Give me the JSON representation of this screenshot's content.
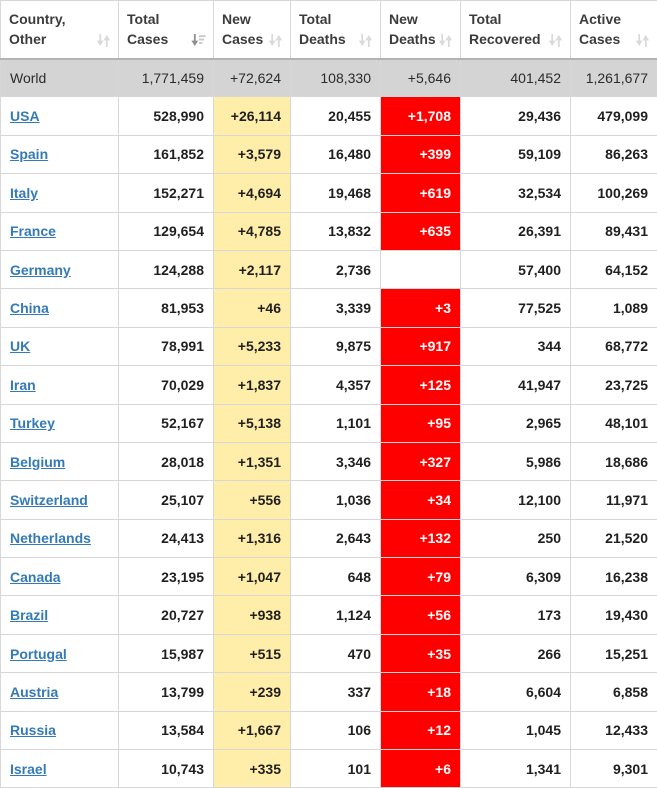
{
  "table": {
    "columns": [
      {
        "id": "country",
        "line1": "Country,",
        "line2": "Other",
        "sort": "unsorted",
        "sort_icon": "sort-both-icon"
      },
      {
        "id": "total_cases",
        "line1": "Total",
        "line2": "Cases",
        "sort": "desc",
        "sort_icon": "sort-descending-icon"
      },
      {
        "id": "new_cases",
        "line1": "New",
        "line2": "Cases",
        "sort": "unsorted",
        "sort_icon": "sort-both-icon"
      },
      {
        "id": "total_deaths",
        "line1": "Total",
        "line2": "Deaths",
        "sort": "unsorted",
        "sort_icon": "sort-both-icon"
      },
      {
        "id": "new_deaths",
        "line1": "New",
        "line2": "Deaths",
        "sort": "unsorted",
        "sort_icon": "sort-both-icon"
      },
      {
        "id": "total_recovered",
        "line1": "Total",
        "line2": "Recovered",
        "sort": "unsorted",
        "sort_icon": "sort-both-icon"
      },
      {
        "id": "active_cases",
        "line1": "Active",
        "line2": "Cases",
        "sort": "unsorted",
        "sort_icon": "sort-both-icon"
      }
    ],
    "world_row": {
      "country": "World",
      "total_cases": "1,771,459",
      "new_cases": "+72,624",
      "total_deaths": "108,330",
      "new_deaths": "+5,646",
      "total_recovered": "401,452",
      "active_cases": "1,261,677"
    },
    "rows": [
      {
        "country": "USA",
        "total_cases": "528,990",
        "new_cases": "+26,114",
        "total_deaths": "20,455",
        "new_deaths": "+1,708",
        "total_recovered": "29,436",
        "active_cases": "479,099"
      },
      {
        "country": "Spain",
        "total_cases": "161,852",
        "new_cases": "+3,579",
        "total_deaths": "16,480",
        "new_deaths": "+399",
        "total_recovered": "59,109",
        "active_cases": "86,263"
      },
      {
        "country": "Italy",
        "total_cases": "152,271",
        "new_cases": "+4,694",
        "total_deaths": "19,468",
        "new_deaths": "+619",
        "total_recovered": "32,534",
        "active_cases": "100,269"
      },
      {
        "country": "France",
        "total_cases": "129,654",
        "new_cases": "+4,785",
        "total_deaths": "13,832",
        "new_deaths": "+635",
        "total_recovered": "26,391",
        "active_cases": "89,431"
      },
      {
        "country": "Germany",
        "total_cases": "124,288",
        "new_cases": "+2,117",
        "total_deaths": "2,736",
        "new_deaths": "",
        "total_recovered": "57,400",
        "active_cases": "64,152"
      },
      {
        "country": "China",
        "total_cases": "81,953",
        "new_cases": "+46",
        "total_deaths": "3,339",
        "new_deaths": "+3",
        "total_recovered": "77,525",
        "active_cases": "1,089"
      },
      {
        "country": "UK",
        "total_cases": "78,991",
        "new_cases": "+5,233",
        "total_deaths": "9,875",
        "new_deaths": "+917",
        "total_recovered": "344",
        "active_cases": "68,772"
      },
      {
        "country": "Iran",
        "total_cases": "70,029",
        "new_cases": "+1,837",
        "total_deaths": "4,357",
        "new_deaths": "+125",
        "total_recovered": "41,947",
        "active_cases": "23,725"
      },
      {
        "country": "Turkey",
        "total_cases": "52,167",
        "new_cases": "+5,138",
        "total_deaths": "1,101",
        "new_deaths": "+95",
        "total_recovered": "2,965",
        "active_cases": "48,101"
      },
      {
        "country": "Belgium",
        "total_cases": "28,018",
        "new_cases": "+1,351",
        "total_deaths": "3,346",
        "new_deaths": "+327",
        "total_recovered": "5,986",
        "active_cases": "18,686"
      },
      {
        "country": "Switzerland",
        "total_cases": "25,107",
        "new_cases": "+556",
        "total_deaths": "1,036",
        "new_deaths": "+34",
        "total_recovered": "12,100",
        "active_cases": "11,971"
      },
      {
        "country": "Netherlands",
        "total_cases": "24,413",
        "new_cases": "+1,316",
        "total_deaths": "2,643",
        "new_deaths": "+132",
        "total_recovered": "250",
        "active_cases": "21,520"
      },
      {
        "country": "Canada",
        "total_cases": "23,195",
        "new_cases": "+1,047",
        "total_deaths": "648",
        "new_deaths": "+79",
        "total_recovered": "6,309",
        "active_cases": "16,238"
      },
      {
        "country": "Brazil",
        "total_cases": "20,727",
        "new_cases": "+938",
        "total_deaths": "1,124",
        "new_deaths": "+56",
        "total_recovered": "173",
        "active_cases": "19,430"
      },
      {
        "country": "Portugal",
        "total_cases": "15,987",
        "new_cases": "+515",
        "total_deaths": "470",
        "new_deaths": "+35",
        "total_recovered": "266",
        "active_cases": "15,251"
      },
      {
        "country": "Austria",
        "total_cases": "13,799",
        "new_cases": "+239",
        "total_deaths": "337",
        "new_deaths": "+18",
        "total_recovered": "6,604",
        "active_cases": "6,858"
      },
      {
        "country": "Russia",
        "total_cases": "13,584",
        "new_cases": "+1,667",
        "total_deaths": "106",
        "new_deaths": "+12",
        "total_recovered": "1,045",
        "active_cases": "12,433"
      },
      {
        "country": "Israel",
        "total_cases": "10,743",
        "new_cases": "+335",
        "total_deaths": "101",
        "new_deaths": "+6",
        "total_recovered": "1,341",
        "active_cases": "9,301"
      }
    ]
  },
  "colors": {
    "new_cases_bg": "#FFEEAA",
    "new_deaths_bg": "#FF0000",
    "link": "#337AB7",
    "world_row_bg": "#D4D4D4"
  }
}
